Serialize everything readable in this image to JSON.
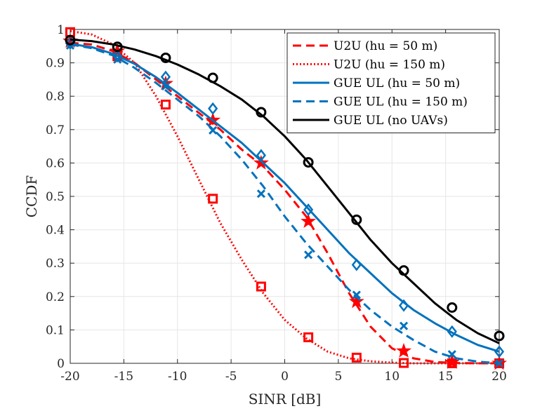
{
  "chart_data": {
    "type": "line",
    "title": "",
    "xlabel": "SINR [dB]",
    "ylabel": "CCDF",
    "xlim": [
      -20,
      20
    ],
    "ylim": [
      0,
      1
    ],
    "grid": true,
    "legend_position": "top-right",
    "x_ticks": [
      -20,
      -15,
      -10,
      -5,
      0,
      5,
      10,
      15,
      20
    ],
    "x_tick_labels": [
      "-20",
      "-15",
      "-10",
      "-5",
      "0",
      "5",
      "10",
      "15",
      "20"
    ],
    "y_ticks": [
      0,
      0.1,
      0.2,
      0.3,
      0.4,
      0.5,
      0.6,
      0.7,
      0.8,
      0.9,
      1
    ],
    "y_tick_labels": [
      "0",
      "0.1",
      "0.2",
      "0.3",
      "0.4",
      "0.5",
      "0.6",
      "0.7",
      "0.8",
      "0.9",
      "1"
    ],
    "series": [
      {
        "name": "U2U (h_u = 50 m)",
        "legend": "U2U (hu = 50 m)",
        "color": "#ff0000",
        "line_style": "dashed",
        "marker": "star",
        "curve_x": [
          -20,
          -18,
          -16,
          -14,
          -12,
          -10,
          -8,
          -6,
          -4,
          -2,
          0,
          2,
          4,
          6,
          8,
          10,
          12,
          14,
          16,
          18,
          20
        ],
        "curve_y": [
          0.96,
          0.955,
          0.935,
          0.9,
          0.85,
          0.8,
          0.75,
          0.7,
          0.64,
          0.59,
          0.52,
          0.44,
          0.33,
          0.21,
          0.11,
          0.045,
          0.015,
          0.004,
          0.001,
          0.0,
          0.0
        ],
        "marker_x": [
          -20,
          -15.6,
          -11.1,
          -6.7,
          -2.2,
          2.2,
          6.7,
          11.1,
          15.6,
          20
        ],
        "marker_y": [
          0.965,
          0.935,
          0.838,
          0.728,
          0.6,
          0.425,
          0.185,
          0.037,
          0.003,
          0.0
        ]
      },
      {
        "name": "U2U (h_u = 150 m)",
        "legend": "U2U (hu = 150 m)",
        "color": "#ff0000",
        "line_style": "dotted",
        "marker": "square",
        "curve_x": [
          -20,
          -18,
          -16,
          -14,
          -12,
          -10,
          -8,
          -6,
          -4,
          -2,
          0,
          2,
          4,
          6,
          8,
          10,
          12,
          14,
          16,
          18,
          20
        ],
        "curve_y": [
          0.995,
          0.985,
          0.955,
          0.9,
          0.8,
          0.68,
          0.55,
          0.42,
          0.31,
          0.21,
          0.13,
          0.075,
          0.035,
          0.015,
          0.006,
          0.002,
          0.0,
          0.0,
          0.0,
          0.0,
          0.0
        ],
        "marker_x": [
          -20,
          -15.6,
          -11.1,
          -6.7,
          -2.2,
          2.2,
          6.7,
          11.1,
          15.6,
          20
        ],
        "marker_y": [
          0.992,
          0.92,
          0.775,
          0.493,
          0.23,
          0.078,
          0.017,
          0.001,
          0.0,
          0.0
        ]
      },
      {
        "name": "GUE UL (h_u = 50 m)",
        "legend": "GUE UL (hu = 50 m)",
        "color": "#0072bd",
        "line_style": "solid",
        "marker": "diamond",
        "curve_x": [
          -20,
          -18,
          -16,
          -14,
          -12,
          -10,
          -8,
          -6,
          -4,
          -2,
          0,
          2,
          4,
          6,
          8,
          10,
          12,
          14,
          16,
          18,
          20
        ],
        "curve_y": [
          0.957,
          0.947,
          0.927,
          0.897,
          0.857,
          0.81,
          0.76,
          0.71,
          0.66,
          0.6,
          0.54,
          0.47,
          0.4,
          0.33,
          0.27,
          0.21,
          0.16,
          0.12,
          0.085,
          0.055,
          0.035
        ],
        "marker_x": [
          -20,
          -15.6,
          -11.1,
          -6.7,
          -2.2,
          2.2,
          6.7,
          11.1,
          15.6,
          20
        ],
        "marker_y": [
          0.958,
          0.92,
          0.858,
          0.763,
          0.623,
          0.46,
          0.295,
          0.173,
          0.095,
          0.035
        ]
      },
      {
        "name": "GUE UL (h_u = 150 m)",
        "legend": "GUE UL (hu = 150 m)",
        "color": "#0072bd",
        "line_style": "dashed",
        "marker": "x",
        "curve_x": [
          -20,
          -18,
          -16,
          -14,
          -12,
          -10,
          -8,
          -6,
          -4,
          -2,
          0,
          2,
          4,
          6,
          8,
          10,
          12,
          14,
          16,
          18,
          20
        ],
        "curve_y": [
          0.955,
          0.944,
          0.922,
          0.885,
          0.84,
          0.79,
          0.74,
          0.68,
          0.61,
          0.53,
          0.44,
          0.36,
          0.29,
          0.22,
          0.16,
          0.11,
          0.07,
          0.035,
          0.015,
          0.005,
          0.0
        ],
        "marker_x": [
          -20,
          -15.6,
          -11.1,
          -6.7,
          -2.2,
          2.2,
          6.7,
          11.1,
          15.6,
          20
        ],
        "marker_y": [
          0.952,
          0.91,
          0.83,
          0.698,
          0.508,
          0.325,
          0.205,
          0.112,
          0.027,
          0.0
        ]
      },
      {
        "name": "GUE UL (no UAVs)",
        "legend": "GUE UL (no UAVs)",
        "color": "#000000",
        "line_style": "solid",
        "marker": "circle",
        "curve_x": [
          -20,
          -18,
          -16,
          -14,
          -12,
          -10,
          -8,
          -6,
          -4,
          -2,
          0,
          2,
          4,
          6,
          8,
          10,
          12,
          14,
          16,
          18,
          20
        ],
        "curve_y": [
          0.97,
          0.965,
          0.955,
          0.94,
          0.92,
          0.895,
          0.865,
          0.83,
          0.79,
          0.74,
          0.68,
          0.61,
          0.53,
          0.45,
          0.37,
          0.3,
          0.24,
          0.18,
          0.13,
          0.09,
          0.06
        ],
        "marker_x": [
          -20,
          -15.6,
          -11.1,
          -6.7,
          -2.2,
          2.2,
          6.7,
          11.1,
          15.6,
          20
        ],
        "marker_y": [
          0.968,
          0.948,
          0.915,
          0.855,
          0.752,
          0.602,
          0.43,
          0.278,
          0.167,
          0.082
        ]
      }
    ]
  }
}
